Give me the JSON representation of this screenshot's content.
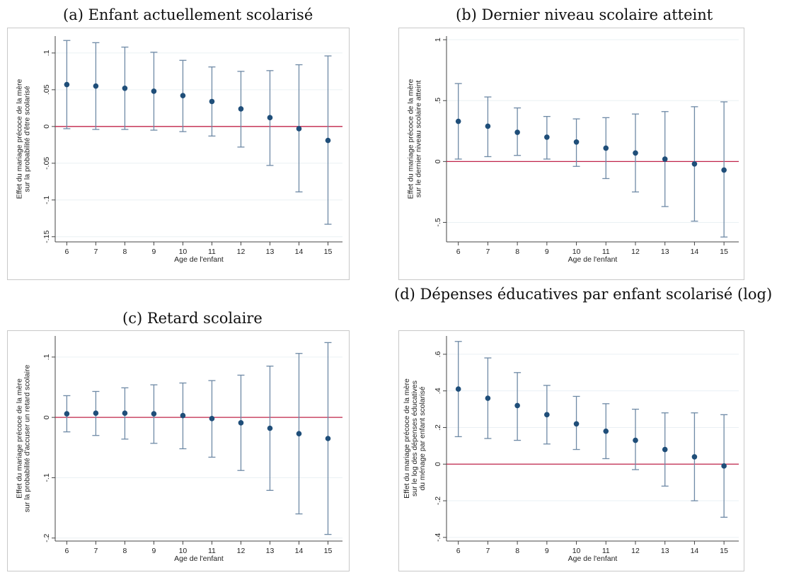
{
  "chart_data": [
    {
      "id": "a",
      "type": "scatter",
      "title": "(a) Enfant actuellement scolarisé",
      "xlabel": "Age de l'enfant",
      "ylabel_lines": [
        "Effet du mariage précoce de la mère",
        "sur la probabilité d'être scolarisé"
      ],
      "x": [
        6,
        7,
        8,
        9,
        10,
        11,
        12,
        13,
        14,
        15
      ],
      "x_tick_labels": [
        "6",
        "7",
        "8",
        "9",
        "10",
        "11",
        "12",
        "13",
        "14",
        "15"
      ],
      "y": [
        0.057,
        0.055,
        0.052,
        0.048,
        0.042,
        0.034,
        0.024,
        0.012,
        -0.003,
        -0.019
      ],
      "ci_low": [
        -0.003,
        -0.004,
        -0.004,
        -0.005,
        -0.007,
        -0.013,
        -0.028,
        -0.053,
        -0.089,
        -0.133
      ],
      "ci_high": [
        0.117,
        0.114,
        0.108,
        0.101,
        0.09,
        0.081,
        0.075,
        0.076,
        0.084,
        0.096
      ],
      "y_ticks": [
        0.1,
        0.05,
        0,
        -0.05,
        -0.1,
        -0.15
      ],
      "y_tick_labels": [
        ".1",
        ".05",
        "0",
        "-.05",
        "-.1",
        "-.15"
      ],
      "ylim": [
        -0.157,
        0.123
      ],
      "xlim": [
        5.6,
        15.5
      ],
      "reference_line": 0,
      "grid": true,
      "colors": {
        "point": "#1f4e79",
        "ci": "#6f8aa6",
        "reference": "#c0244a"
      }
    },
    {
      "id": "b",
      "type": "scatter",
      "title": "(b) Dernier niveau scolaire atteint",
      "xlabel": "Age de l'enfant",
      "ylabel_lines": [
        "Effet du mariage précoce de la mère",
        "sur le dernier niveau scolaire atteint"
      ],
      "x": [
        6,
        7,
        8,
        9,
        10,
        11,
        12,
        13,
        14,
        15
      ],
      "x_tick_labels": [
        "6",
        "7",
        "8",
        "9",
        "10",
        "11",
        "12",
        "13",
        "14",
        "15"
      ],
      "y": [
        0.33,
        0.29,
        0.24,
        0.2,
        0.16,
        0.11,
        0.07,
        0.02,
        -0.02,
        -0.07
      ],
      "ci_low": [
        0.02,
        0.04,
        0.05,
        0.02,
        -0.04,
        -0.14,
        -0.25,
        -0.37,
        -0.49,
        -0.62
      ],
      "ci_high": [
        0.64,
        0.53,
        0.44,
        0.37,
        0.35,
        0.36,
        0.39,
        0.41,
        0.45,
        0.49
      ],
      "y_ticks": [
        1,
        0.5,
        0,
        -0.5
      ],
      "y_tick_labels": [
        "1",
        ".5",
        "0",
        "-.5"
      ],
      "ylim": [
        -0.66,
        1.03
      ],
      "xlim": [
        5.6,
        15.5
      ],
      "reference_line": 0,
      "grid": true,
      "colors": {
        "point": "#1f4e79",
        "ci": "#6f8aa6",
        "reference": "#c0244a"
      }
    },
    {
      "id": "c",
      "type": "scatter",
      "title": "(c) Retard scolaire",
      "xlabel": "Age de l'enfant",
      "ylabel_lines": [
        "Effet du mariage précoce de la mère",
        "sur la probabilité d'accuser un retard scolaire"
      ],
      "x": [
        6,
        7,
        8,
        9,
        10,
        11,
        12,
        13,
        14,
        15
      ],
      "x_tick_labels": [
        "6",
        "7",
        "8",
        "9",
        "10",
        "11",
        "12",
        "13",
        "14",
        "15"
      ],
      "y": [
        0.006,
        0.007,
        0.007,
        0.006,
        0.003,
        -0.002,
        -0.009,
        -0.018,
        -0.027,
        -0.035
      ],
      "ci_low": [
        -0.024,
        -0.03,
        -0.036,
        -0.043,
        -0.052,
        -0.066,
        -0.088,
        -0.121,
        -0.16,
        -0.194
      ],
      "ci_high": [
        0.036,
        0.043,
        0.049,
        0.054,
        0.057,
        0.061,
        0.07,
        0.085,
        0.106,
        0.124
      ],
      "y_ticks": [
        0.1,
        0,
        -0.1,
        -0.2
      ],
      "y_tick_labels": [
        ".1",
        "0",
        "-.1",
        "-.2"
      ],
      "ylim": [
        -0.205,
        0.135
      ],
      "xlim": [
        5.6,
        15.5
      ],
      "reference_line": 0,
      "grid": true,
      "colors": {
        "point": "#1f4e79",
        "ci": "#6f8aa6",
        "reference": "#c0244a"
      }
    },
    {
      "id": "d",
      "type": "scatter",
      "title": "(d) Dépenses éducatives par enfant scolarisé (log)",
      "xlabel": "Age de l'enfant",
      "ylabel_lines": [
        "Effet du mariage précoce de la mère",
        "sur le log des dépenses éducatives",
        "du ménage par enfant scolarisé"
      ],
      "x": [
        6,
        7,
        8,
        9,
        10,
        11,
        12,
        13,
        14,
        15
      ],
      "x_tick_labels": [
        "6",
        "7",
        "8",
        "9",
        "10",
        "11",
        "12",
        "13",
        "14",
        "15"
      ],
      "y": [
        0.41,
        0.36,
        0.32,
        0.27,
        0.22,
        0.18,
        0.13,
        0.08,
        0.04,
        -0.01
      ],
      "ci_low": [
        0.15,
        0.14,
        0.13,
        0.11,
        0.08,
        0.03,
        -0.03,
        -0.12,
        -0.2,
        -0.29
      ],
      "ci_high": [
        0.67,
        0.58,
        0.5,
        0.43,
        0.37,
        0.33,
        0.3,
        0.28,
        0.28,
        0.27
      ],
      "y_ticks": [
        0.6,
        0.4,
        0.2,
        0,
        -0.2,
        -0.4
      ],
      "y_tick_labels": [
        ".6",
        ".4",
        ".2",
        "0",
        "-.2",
        "-.4"
      ],
      "ylim": [
        -0.42,
        0.7
      ],
      "xlim": [
        5.6,
        15.5
      ],
      "reference_line": 0,
      "grid": true,
      "colors": {
        "point": "#1f4e79",
        "ci": "#6f8aa6",
        "reference": "#c0244a"
      }
    }
  ]
}
